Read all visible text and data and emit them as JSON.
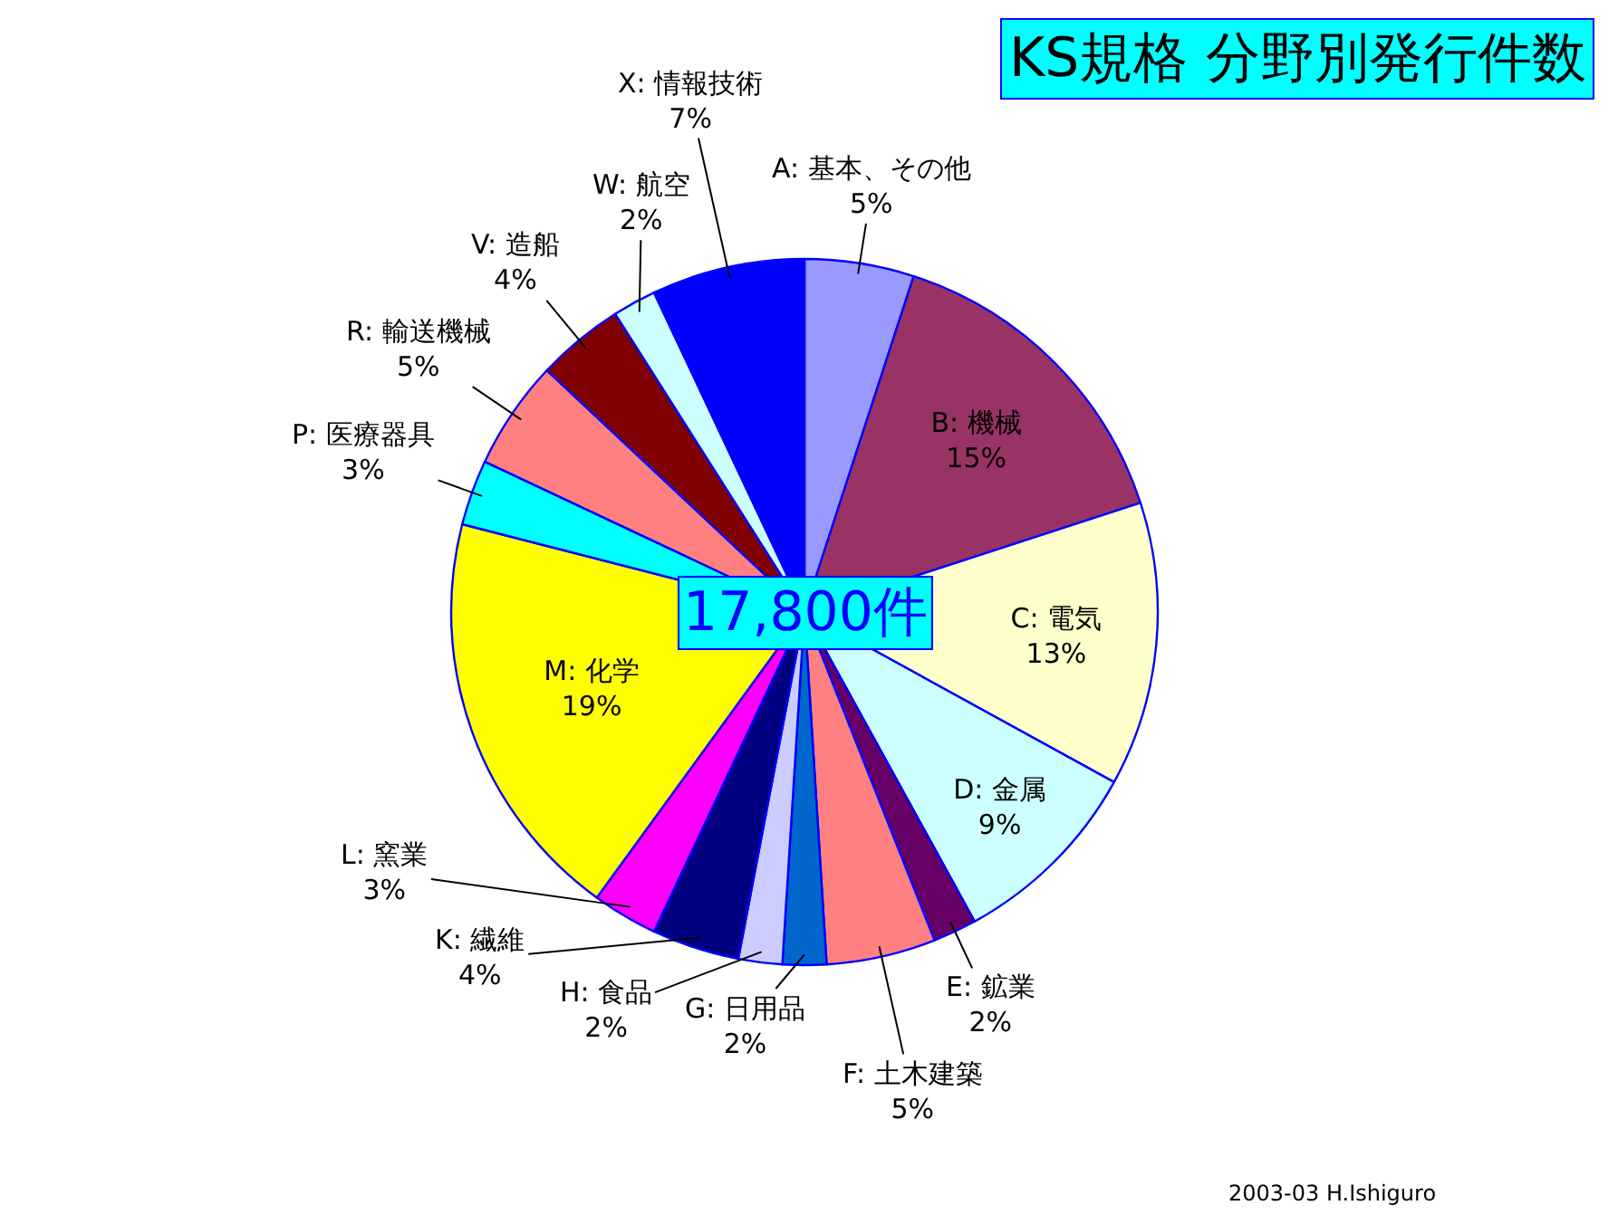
{
  "chart_data": {
    "type": "pie",
    "title": "KS規格 分野別発行件数",
    "categories": [
      "A: 基本、その他",
      "B: 機械",
      "C: 電気",
      "D: 金属",
      "E: 鉱業",
      "F: 土木建築",
      "G: 日用品",
      "H: 食品",
      "K: 繊維",
      "L: 窯業",
      "M: 化学",
      "P: 医療器具",
      "R: 輸送機械",
      "V: 造船",
      "W: 航空",
      "X: 情報技術"
    ],
    "values": [
      5,
      15,
      13,
      9,
      2,
      5,
      2,
      2,
      4,
      3,
      19,
      3,
      5,
      4,
      2,
      7
    ],
    "value_labels": [
      "5%",
      "15%",
      "13%",
      "9%",
      "2%",
      "5%",
      "2%",
      "2%",
      "4%",
      "3%",
      "19%",
      "3%",
      "5%",
      "4%",
      "2%",
      "7%"
    ],
    "colors": [
      "#9999ff",
      "#993366",
      "#ffffcc",
      "#ccffff",
      "#660066",
      "#ff8080",
      "#0066cc",
      "#ccccff",
      "#000080",
      "#ff00ff",
      "#ffff00",
      "#00ffff",
      "#ff8080",
      "#800000",
      "#ccffff",
      "#0000ff"
    ],
    "annotations": [
      "17,800件",
      "2003-03 H.Ishiguro"
    ],
    "legend": false
  }
}
